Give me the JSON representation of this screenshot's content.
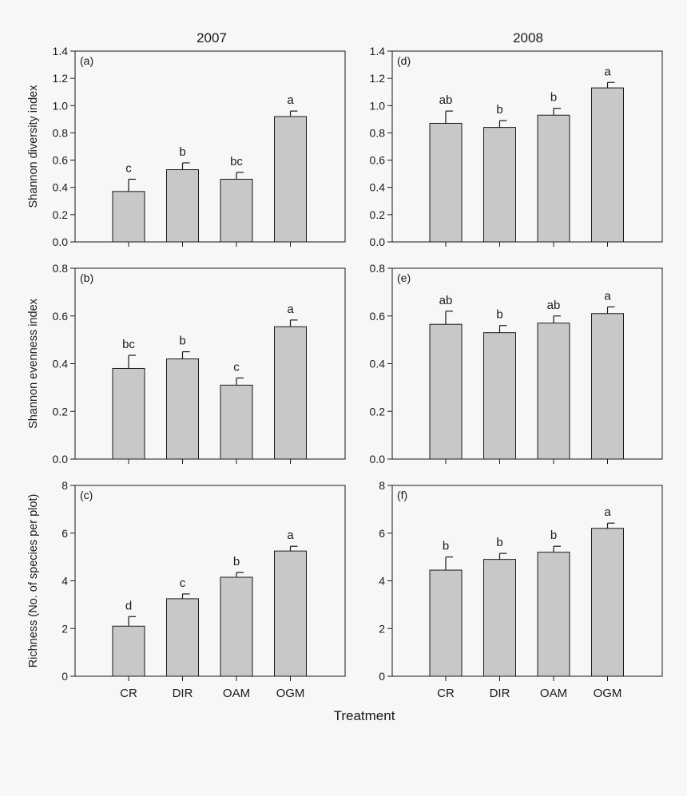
{
  "figure": {
    "column_titles": [
      "2007",
      "2008"
    ],
    "xlabel": "Treatment"
  },
  "chart_data": [
    {
      "type": "bar",
      "panel": "(a)",
      "year": "2007",
      "ylabel": "Shannon diversity index",
      "categories": [
        "CR",
        "DIR",
        "OAM",
        "OGM"
      ],
      "values": [
        0.37,
        0.53,
        0.46,
        0.92
      ],
      "errors": [
        0.09,
        0.05,
        0.05,
        0.04
      ],
      "significance": [
        "c",
        "b",
        "bc",
        "a"
      ],
      "ylim": [
        0,
        1.4
      ],
      "yticks": [
        "0.0",
        "0.2",
        "0.4",
        "0.6",
        "0.8",
        "1.0",
        "1.2",
        "1.4"
      ],
      "show_category_labels": false
    },
    {
      "type": "bar",
      "panel": "(b)",
      "year": "2007",
      "ylabel": "Shannon evenness index",
      "categories": [
        "CR",
        "DIR",
        "OAM",
        "OGM"
      ],
      "values": [
        0.38,
        0.42,
        0.31,
        0.555
      ],
      "errors": [
        0.055,
        0.03,
        0.03,
        0.028
      ],
      "significance": [
        "bc",
        "b",
        "c",
        "a"
      ],
      "ylim": [
        0,
        0.8
      ],
      "yticks": [
        "0.0",
        "0.2",
        "0.4",
        "0.6",
        "0.8"
      ],
      "show_category_labels": false
    },
    {
      "type": "bar",
      "panel": "(c)",
      "year": "2007",
      "ylabel": "Richness (No. of species per plot)",
      "categories": [
        "CR",
        "DIR",
        "OAM",
        "OGM"
      ],
      "values": [
        2.1,
        3.25,
        4.15,
        5.25
      ],
      "errors": [
        0.4,
        0.2,
        0.2,
        0.2
      ],
      "significance": [
        "d",
        "c",
        "b",
        "a"
      ],
      "ylim": [
        0,
        8
      ],
      "yticks": [
        "0",
        "2",
        "4",
        "6",
        "8"
      ],
      "show_category_labels": true
    },
    {
      "type": "bar",
      "panel": "(d)",
      "year": "2008",
      "ylabel": "",
      "categories": [
        "CR",
        "DIR",
        "OAM",
        "OGM"
      ],
      "values": [
        0.87,
        0.84,
        0.93,
        1.13
      ],
      "errors": [
        0.09,
        0.05,
        0.05,
        0.04
      ],
      "significance": [
        "ab",
        "b",
        "b",
        "a"
      ],
      "ylim": [
        0,
        1.4
      ],
      "yticks": [
        "0.0",
        "0.2",
        "0.4",
        "0.6",
        "0.8",
        "1.0",
        "1.2",
        "1.4"
      ],
      "show_category_labels": false
    },
    {
      "type": "bar",
      "panel": "(e)",
      "year": "2008",
      "ylabel": "",
      "categories": [
        "CR",
        "DIR",
        "OAM",
        "OGM"
      ],
      "values": [
        0.565,
        0.53,
        0.57,
        0.61
      ],
      "errors": [
        0.055,
        0.03,
        0.03,
        0.028
      ],
      "significance": [
        "ab",
        "b",
        "ab",
        "a"
      ],
      "ylim": [
        0,
        0.8
      ],
      "yticks": [
        "0.0",
        "0.2",
        "0.4",
        "0.6",
        "0.8"
      ],
      "show_category_labels": false
    },
    {
      "type": "bar",
      "panel": "(f)",
      "year": "2008",
      "ylabel": "",
      "categories": [
        "CR",
        "DIR",
        "OAM",
        "OGM"
      ],
      "values": [
        4.45,
        4.9,
        5.2,
        6.2
      ],
      "errors": [
        0.55,
        0.25,
        0.25,
        0.22
      ],
      "significance": [
        "b",
        "b",
        "b",
        "a"
      ],
      "ylim": [
        0,
        8
      ],
      "yticks": [
        "0",
        "2",
        "4",
        "6",
        "8"
      ],
      "show_category_labels": true
    }
  ]
}
